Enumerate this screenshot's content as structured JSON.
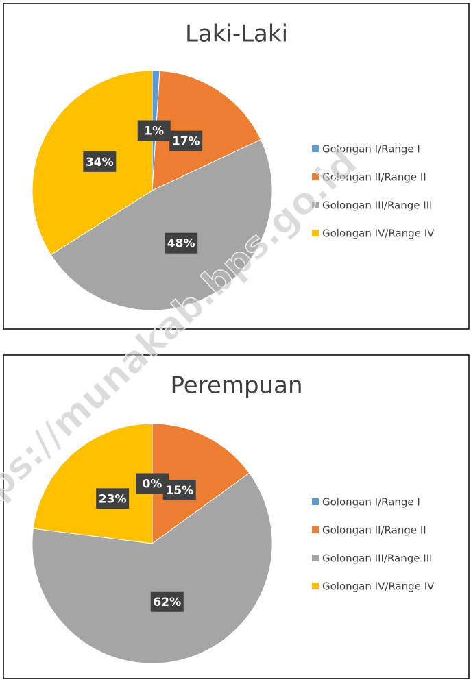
{
  "chart_data": [
    {
      "type": "pie",
      "title": "Laki-Laki",
      "categories": [
        "Golongan I/Range I",
        "Golongan II/Range II",
        "Golongan III/Range III",
        "Golongan IV/Range IV"
      ],
      "values": [
        1,
        17,
        48,
        34
      ],
      "value_labels": [
        "1%",
        "17%",
        "48%",
        "34%"
      ],
      "colors": [
        "#5b9bd5",
        "#ed7d31",
        "#a5a5a5",
        "#ffc000"
      ],
      "legend": "right"
    },
    {
      "type": "pie",
      "title": "Perempuan",
      "categories": [
        "Golongan I/Range I",
        "Golongan II/Range II",
        "Golongan III/Range III",
        "Golongan IV/Range IV"
      ],
      "values": [
        0,
        15,
        62,
        23
      ],
      "value_labels": [
        "0%",
        "15%",
        "62%",
        "23%"
      ],
      "colors": [
        "#5b9bd5",
        "#ed7d31",
        "#a5a5a5",
        "#ffc000"
      ],
      "legend": "right"
    }
  ],
  "watermark": "ps://munakab.bps.go.id"
}
